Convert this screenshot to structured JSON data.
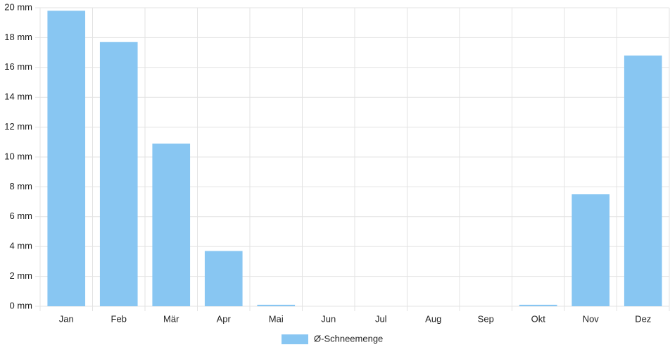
{
  "chart_data": {
    "type": "bar",
    "categories": [
      "Jan",
      "Feb",
      "Mär",
      "Apr",
      "Mai",
      "Jun",
      "Jul",
      "Aug",
      "Sep",
      "Okt",
      "Nov",
      "Dez"
    ],
    "series": [
      {
        "name": "Ø-Schneemenge",
        "color": "#88c6f2",
        "values": [
          19.8,
          17.7,
          10.9,
          3.7,
          0.1,
          0,
          0,
          0,
          0,
          0.1,
          7.5,
          16.8
        ]
      }
    ],
    "ylim": [
      0,
      20
    ],
    "yticks": [
      {
        "value": 0,
        "label": "0 mm"
      },
      {
        "value": 2,
        "label": "2 mm"
      },
      {
        "value": 4,
        "label": "4 mm"
      },
      {
        "value": 6,
        "label": "6 mm"
      },
      {
        "value": 8,
        "label": "8 mm"
      },
      {
        "value": 10,
        "label": "10 mm"
      },
      {
        "value": 12,
        "label": "12 mm"
      },
      {
        "value": 14,
        "label": "14 mm"
      },
      {
        "value": 16,
        "label": "16 mm"
      },
      {
        "value": 18,
        "label": "18 mm"
      },
      {
        "value": 20,
        "label": "20 mm"
      }
    ],
    "grid": true,
    "legend": "bottom"
  }
}
